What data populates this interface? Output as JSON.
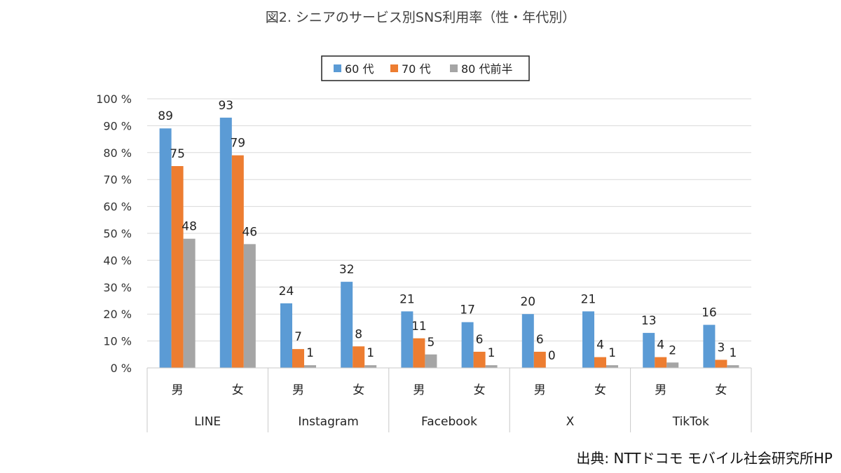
{
  "chart_data": {
    "type": "bar",
    "title": "図2. シニアのサービス別SNS利用率（性・年代別）",
    "groups": [
      "LINE",
      "Instagram",
      "Facebook",
      "X",
      "TikTok"
    ],
    "subcategories": [
      "男",
      "女"
    ],
    "series": [
      {
        "name": "60 代",
        "color": "#5b9bd5",
        "values": [
          89,
          93,
          24,
          32,
          21,
          17,
          20,
          21,
          13,
          16
        ]
      },
      {
        "name": "70 代",
        "color": "#ed7d31",
        "values": [
          75,
          79,
          7,
          8,
          11,
          6,
          6,
          4,
          4,
          3
        ]
      },
      {
        "name": "80 代前半",
        "color": "#a5a5a5",
        "values": [
          48,
          46,
          1,
          1,
          5,
          1,
          0,
          1,
          2,
          1
        ]
      }
    ],
    "y_ticks": [
      "0 %",
      "10 %",
      "20 %",
      "30 %",
      "40 %",
      "50 %",
      "60 %",
      "70 %",
      "80 %",
      "90 %",
      "100 %"
    ],
    "ylim": [
      0,
      100
    ],
    "grid": true,
    "legend_position": "top-center"
  },
  "source": "出典: NTTドコモ モバイル社会研究所HP"
}
